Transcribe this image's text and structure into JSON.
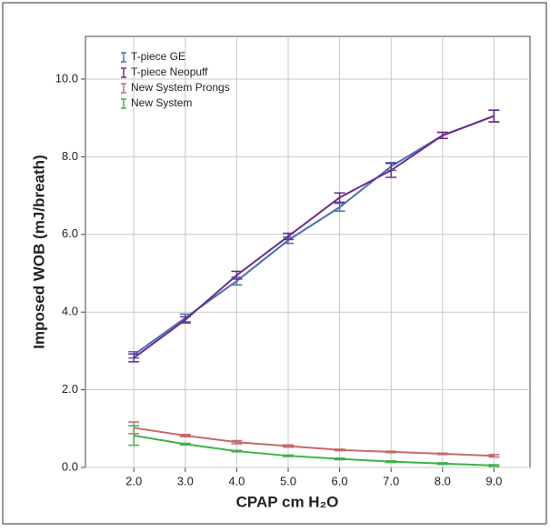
{
  "chart_data": {
    "type": "line_errorbar",
    "x_label": "CPAP cm H₂O",
    "y_label": "Imposed WOB (mJ/breath)",
    "x": [
      2,
      3,
      4,
      5,
      6,
      7,
      8,
      9
    ],
    "series": [
      {
        "name": "T-piece GE",
        "color": "#4a6fb5",
        "values": [
          2.9,
          3.85,
          4.8,
          5.85,
          6.7,
          7.75,
          8.55,
          9.05
        ],
        "errors": [
          0.08,
          0.1,
          0.1,
          0.08,
          0.1,
          0.1,
          0.08,
          0.15
        ]
      },
      {
        "name": "T-piece Neopuff",
        "color": "#6b2c8f",
        "values": [
          2.82,
          3.8,
          4.95,
          5.95,
          6.95,
          7.65,
          8.55,
          9.05
        ],
        "errors": [
          0.1,
          0.08,
          0.1,
          0.08,
          0.12,
          0.18,
          0.08,
          0.15
        ]
      },
      {
        "name": "New System Prongs",
        "color": "#c46b6b",
        "values": [
          1.02,
          0.82,
          0.65,
          0.55,
          0.45,
          0.4,
          0.35,
          0.3
        ],
        "errors": [
          0.15,
          0.03,
          0.04,
          0.03,
          0.02,
          0.02,
          0.02,
          0.03
        ]
      },
      {
        "name": "New System",
        "color": "#3cb34a",
        "values": [
          0.82,
          0.6,
          0.42,
          0.3,
          0.22,
          0.15,
          0.1,
          0.05
        ],
        "errors": [
          0.25,
          0.02,
          0.02,
          0.02,
          0.02,
          0.02,
          0.02,
          0.02
        ]
      }
    ],
    "xlim": [
      1.06,
      9.7
    ],
    "ylim": [
      0,
      11.1
    ],
    "xticks": [
      {
        "value": 2,
        "label": "2.0"
      },
      {
        "value": 3,
        "label": "3.0"
      },
      {
        "value": 4,
        "label": "4.0"
      },
      {
        "value": 5,
        "label": "5.0"
      },
      {
        "value": 6,
        "label": "6.0"
      },
      {
        "value": 7,
        "label": "7.0"
      },
      {
        "value": 8,
        "label": "8.0"
      },
      {
        "value": 9,
        "label": "9.0"
      }
    ],
    "yticks": [
      {
        "value": 0,
        "label": "0.0"
      },
      {
        "value": 2,
        "label": "2.0"
      },
      {
        "value": 4,
        "label": "4.0"
      },
      {
        "value": 6,
        "label": "6.0"
      },
      {
        "value": 8,
        "label": "8.0"
      },
      {
        "value": 10,
        "label": "10.0"
      }
    ],
    "grid": true,
    "legend": "top-left"
  }
}
